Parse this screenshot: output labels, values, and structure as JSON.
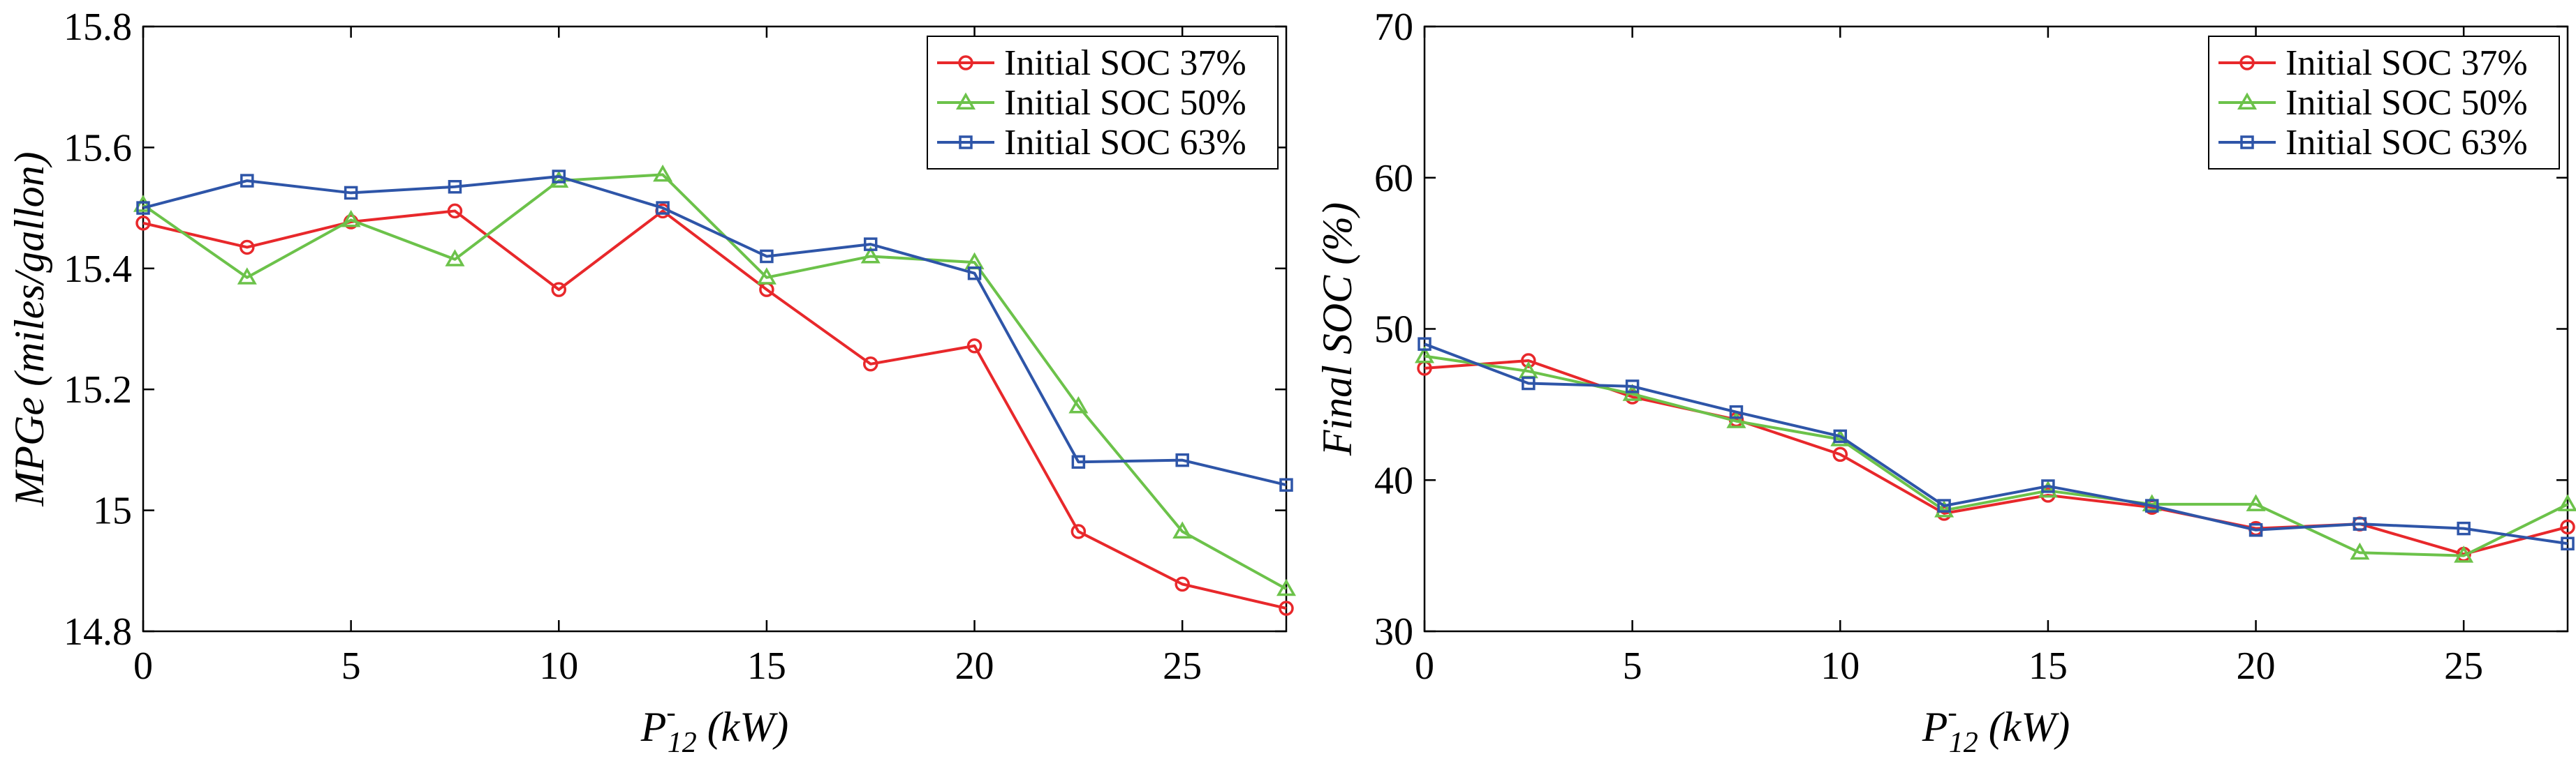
{
  "chart_data": [
    {
      "type": "line",
      "xlabel": {
        "main": "P",
        "sup": "-",
        "sub": "12",
        "unit": " (kW)"
      },
      "ylabel": "MPGe (miles/gallon)",
      "xlim": [
        0,
        27.5
      ],
      "ylim": [
        14.8,
        15.8
      ],
      "xticks": [
        0,
        5,
        10,
        15,
        20,
        25
      ],
      "xtick_labels": [
        "0",
        "5",
        "10",
        "15",
        "20",
        "25"
      ],
      "yticks": [
        14.8,
        15.0,
        15.2,
        15.4,
        15.6,
        15.8
      ],
      "ytick_labels": [
        "14.8",
        "15",
        "15.2",
        "15.4",
        "15.6",
        "15.8"
      ],
      "grid": false,
      "legend_position": "top-right",
      "x": [
        0,
        2.5,
        5,
        7.5,
        10,
        12.5,
        15,
        17.5,
        20,
        22.5,
        25,
        27.5
      ],
      "series": [
        {
          "name": "Initial SOC 37%",
          "color": "#e8282b",
          "marker": "circle",
          "values": [
            15.475,
            15.435,
            15.477,
            15.495,
            15.365,
            15.495,
            15.365,
            15.242,
            15.272,
            14.965,
            14.878,
            14.838
          ]
        },
        {
          "name": "Initial SOC 50%",
          "color": "#6cc24a",
          "marker": "triangle",
          "values": [
            15.505,
            15.385,
            15.48,
            15.415,
            15.545,
            15.555,
            15.385,
            15.42,
            15.41,
            15.172,
            14.965,
            14.87
          ]
        },
        {
          "name": "Initial SOC 63%",
          "color": "#2e55a8",
          "marker": "square",
          "values": [
            15.5,
            15.545,
            15.525,
            15.535,
            15.552,
            15.5,
            15.42,
            15.44,
            15.392,
            15.08,
            15.083,
            15.042
          ]
        }
      ]
    },
    {
      "type": "line",
      "xlabel": {
        "main": "P",
        "sup": "-",
        "sub": "12",
        "unit": " (kW)"
      },
      "ylabel": "Final SOC (%)",
      "xlim": [
        0,
        27.5
      ],
      "ylim": [
        30,
        70
      ],
      "xticks": [
        0,
        5,
        10,
        15,
        20,
        25
      ],
      "xtick_labels": [
        "0",
        "5",
        "10",
        "15",
        "20",
        "25"
      ],
      "yticks": [
        30,
        40,
        50,
        60,
        70
      ],
      "ytick_labels": [
        "30",
        "40",
        "50",
        "60",
        "70"
      ],
      "grid": false,
      "legend_position": "top-right",
      "x": [
        0,
        2.5,
        5,
        7.5,
        10,
        12.5,
        15,
        17.5,
        20,
        22.5,
        25,
        27.5
      ],
      "series": [
        {
          "name": "Initial SOC 37%",
          "color": "#e8282b",
          "marker": "circle",
          "values": [
            47.4,
            47.9,
            45.5,
            44.0,
            41.7,
            37.8,
            39.0,
            38.2,
            36.8,
            37.1,
            35.1,
            36.9
          ]
        },
        {
          "name": "Initial SOC 50%",
          "color": "#6cc24a",
          "marker": "triangle",
          "values": [
            48.2,
            47.2,
            45.7,
            43.9,
            42.7,
            38.0,
            39.3,
            38.4,
            38.4,
            35.2,
            35.0,
            38.4
          ]
        },
        {
          "name": "Initial SOC 63%",
          "color": "#2e55a8",
          "marker": "square",
          "values": [
            49.0,
            46.4,
            46.2,
            44.5,
            42.9,
            38.3,
            39.6,
            38.3,
            36.7,
            37.1,
            36.8,
            35.8
          ]
        }
      ]
    }
  ]
}
